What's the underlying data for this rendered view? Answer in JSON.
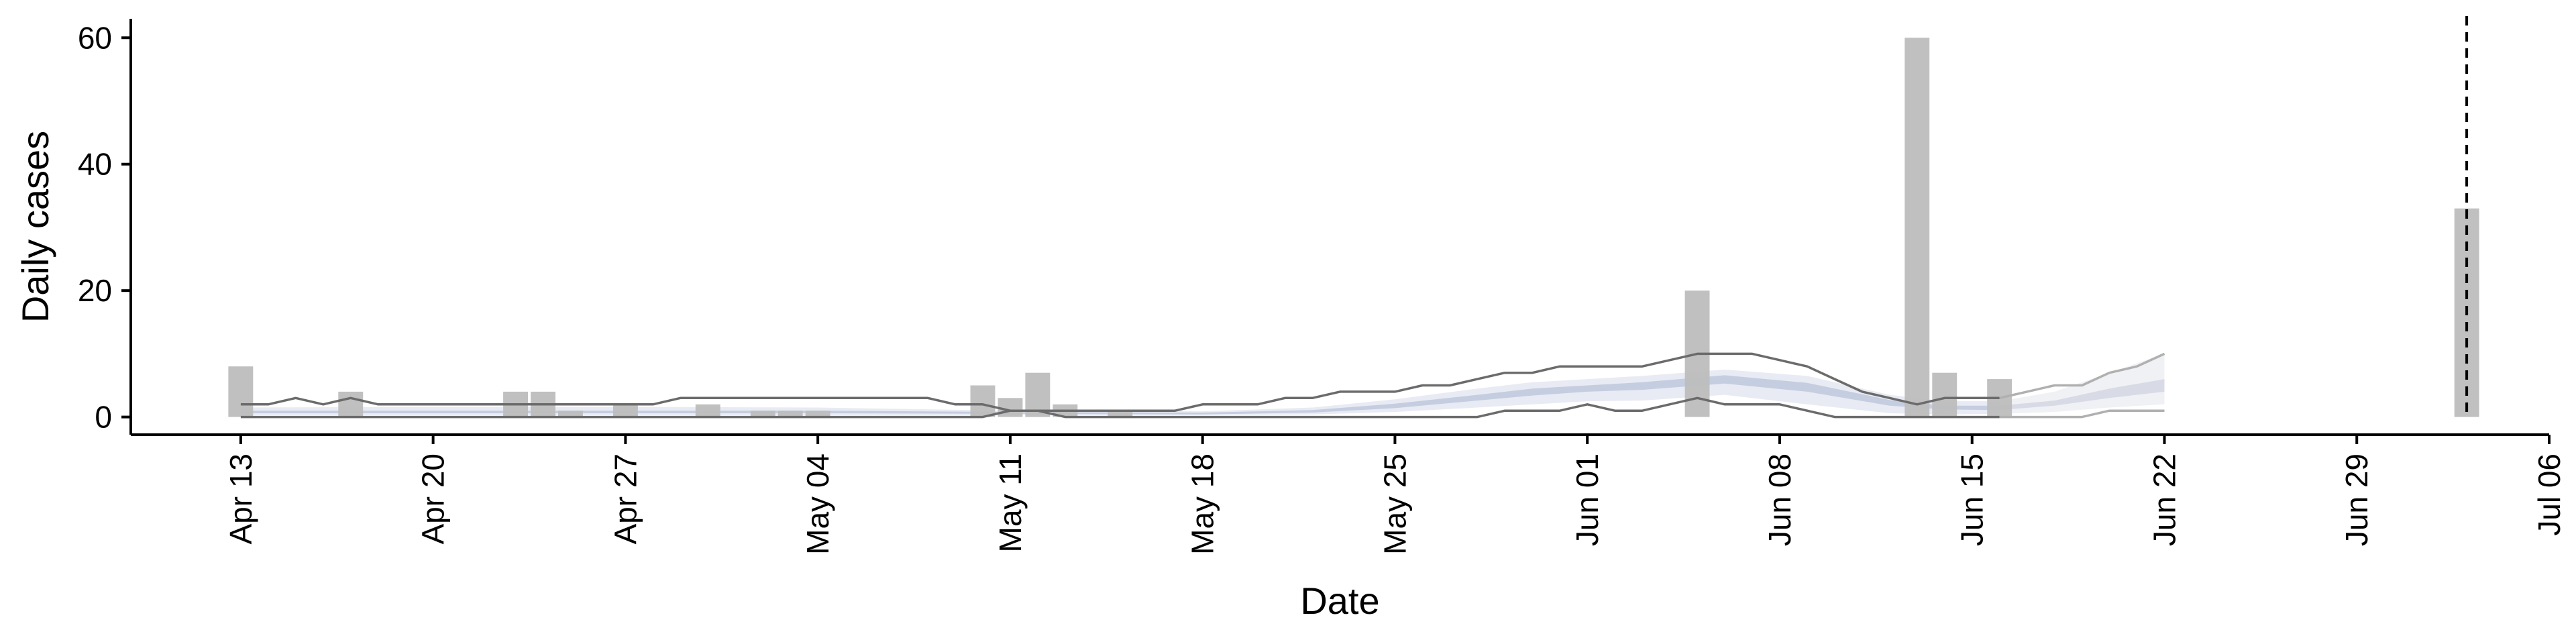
{
  "chart_data": {
    "type": "bar",
    "xlabel": "Date",
    "ylabel": "Daily cases",
    "x_axis": {
      "type": "date",
      "range": [
        "2020-04-09",
        "2020-07-06"
      ],
      "ticks": [
        {
          "date": "2020-04-13",
          "label": "Apr 13"
        },
        {
          "date": "2020-04-20",
          "label": "Apr 20"
        },
        {
          "date": "2020-04-27",
          "label": "Apr 27"
        },
        {
          "date": "2020-05-04",
          "label": "May 04"
        },
        {
          "date": "2020-05-11",
          "label": "May 11"
        },
        {
          "date": "2020-05-18",
          "label": "May 18"
        },
        {
          "date": "2020-05-25",
          "label": "May 25"
        },
        {
          "date": "2020-06-01",
          "label": "Jun 01"
        },
        {
          "date": "2020-06-08",
          "label": "Jun 08"
        },
        {
          "date": "2020-06-15",
          "label": "Jun 15"
        },
        {
          "date": "2020-06-22",
          "label": "Jun 22"
        },
        {
          "date": "2020-06-29",
          "label": "Jun 29"
        },
        {
          "date": "2020-07-06",
          "label": "Jul 06"
        }
      ]
    },
    "y_axis": {
      "range": [
        -2.8,
        63
      ],
      "ticks": [
        0,
        20,
        40,
        60
      ]
    },
    "grid": false,
    "colors": {
      "bars": "#bdbdbd",
      "band_outer": "#e8ebf3",
      "band_inner": "#c5cde0",
      "band_future_outer": "#f0f1f5",
      "band_future_inner": "#d8dbe6",
      "bound_lines": "#6b6b6b",
      "bound_lines_future": "#b0b0b0",
      "vline": "#000000"
    },
    "observed_cases": [
      {
        "date": "2020-04-13",
        "value": 8
      },
      {
        "date": "2020-04-17",
        "value": 4
      },
      {
        "date": "2020-04-23",
        "value": 4
      },
      {
        "date": "2020-04-24",
        "value": 4
      },
      {
        "date": "2020-04-25",
        "value": 1
      },
      {
        "date": "2020-04-27",
        "value": 2
      },
      {
        "date": "2020-04-30",
        "value": 2
      },
      {
        "date": "2020-05-02",
        "value": 1
      },
      {
        "date": "2020-05-03",
        "value": 1
      },
      {
        "date": "2020-05-04",
        "value": 1
      },
      {
        "date": "2020-05-10",
        "value": 5
      },
      {
        "date": "2020-05-11",
        "value": 3
      },
      {
        "date": "2020-05-12",
        "value": 7
      },
      {
        "date": "2020-05-13",
        "value": 2
      },
      {
        "date": "2020-05-15",
        "value": 1
      },
      {
        "date": "2020-06-05",
        "value": 20
      },
      {
        "date": "2020-06-13",
        "value": 60
      },
      {
        "date": "2020-06-14",
        "value": 7
      },
      {
        "date": "2020-06-16",
        "value": 6
      },
      {
        "date": "2020-07-03",
        "value": 33
      }
    ],
    "estimate_band": {
      "dates": [
        "2020-04-13",
        "2020-04-20",
        "2020-04-27",
        "2020-05-04",
        "2020-05-11",
        "2020-05-18",
        "2020-05-22",
        "2020-05-25",
        "2020-05-28",
        "2020-05-30",
        "2020-06-01",
        "2020-06-03",
        "2020-06-06",
        "2020-06-09",
        "2020-06-12",
        "2020-06-14",
        "2020-06-16"
      ],
      "outer_low": [
        0.3,
        0.3,
        0.3,
        0.3,
        0.3,
        0.3,
        0.4,
        0.8,
        1.5,
        2.0,
        2.5,
        2.6,
        3.5,
        2.0,
        0.6,
        0.4,
        0.5
      ],
      "outer_high": [
        1.5,
        1.6,
        1.6,
        1.5,
        1.0,
        0.9,
        1.5,
        2.8,
        4.5,
        5.5,
        6.0,
        6.5,
        7.5,
        6.5,
        3.5,
        2.5,
        2.5
      ],
      "inner_low": [
        0.6,
        0.6,
        0.6,
        0.6,
        0.5,
        0.4,
        0.7,
        1.4,
        2.6,
        3.4,
        4.0,
        4.3,
        5.3,
        4.0,
        1.8,
        1.2,
        1.1
      ],
      "inner_high": [
        1.0,
        1.0,
        1.0,
        1.0,
        0.8,
        0.7,
        1.1,
        2.1,
        3.5,
        4.5,
        5.0,
        5.5,
        6.6,
        5.4,
        2.7,
        1.8,
        1.8
      ]
    },
    "forecast_band": {
      "dates": [
        "2020-06-16",
        "2020-06-18",
        "2020-06-20",
        "2020-06-22"
      ],
      "outer_low": [
        0.5,
        0.8,
        1.5,
        2.0
      ],
      "outer_high": [
        2.5,
        4.0,
        7.0,
        10.0
      ],
      "inner_low": [
        1.1,
        1.8,
        3.0,
        4.0
      ],
      "inner_high": [
        1.8,
        2.6,
        4.5,
        6.0
      ]
    },
    "upper_bound": [
      {
        "date": "2020-04-13",
        "value": 2
      },
      {
        "date": "2020-04-14",
        "value": 2
      },
      {
        "date": "2020-04-15",
        "value": 3
      },
      {
        "date": "2020-04-16",
        "value": 2
      },
      {
        "date": "2020-04-17",
        "value": 3
      },
      {
        "date": "2020-04-18",
        "value": 2
      },
      {
        "date": "2020-04-28",
        "value": 2
      },
      {
        "date": "2020-04-29",
        "value": 3
      },
      {
        "date": "2020-05-08",
        "value": 3
      },
      {
        "date": "2020-05-09",
        "value": 2
      },
      {
        "date": "2020-05-10",
        "value": 2
      },
      {
        "date": "2020-05-11",
        "value": 1
      },
      {
        "date": "2020-05-17",
        "value": 1
      },
      {
        "date": "2020-05-18",
        "value": 2
      },
      {
        "date": "2020-05-20",
        "value": 2
      },
      {
        "date": "2020-05-21",
        "value": 3
      },
      {
        "date": "2020-05-22",
        "value": 3
      },
      {
        "date": "2020-05-23",
        "value": 4
      },
      {
        "date": "2020-05-25",
        "value": 4
      },
      {
        "date": "2020-05-26",
        "value": 5
      },
      {
        "date": "2020-05-27",
        "value": 5
      },
      {
        "date": "2020-05-28",
        "value": 6
      },
      {
        "date": "2020-05-29",
        "value": 7
      },
      {
        "date": "2020-05-30",
        "value": 7
      },
      {
        "date": "2020-05-31",
        "value": 8
      },
      {
        "date": "2020-06-03",
        "value": 8
      },
      {
        "date": "2020-06-04",
        "value": 9
      },
      {
        "date": "2020-06-05",
        "value": 10
      },
      {
        "date": "2020-06-07",
        "value": 10
      },
      {
        "date": "2020-06-08",
        "value": 9
      },
      {
        "date": "2020-06-09",
        "value": 8
      },
      {
        "date": "2020-06-10",
        "value": 6
      },
      {
        "date": "2020-06-11",
        "value": 4
      },
      {
        "date": "2020-06-12",
        "value": 3
      },
      {
        "date": "2020-06-13",
        "value": 2
      },
      {
        "date": "2020-06-14",
        "value": 3
      },
      {
        "date": "2020-06-16",
        "value": 3
      }
    ],
    "upper_bound_forecast": [
      {
        "date": "2020-06-16",
        "value": 3
      },
      {
        "date": "2020-06-17",
        "value": 4
      },
      {
        "date": "2020-06-18",
        "value": 5
      },
      {
        "date": "2020-06-19",
        "value": 5
      },
      {
        "date": "2020-06-20",
        "value": 7
      },
      {
        "date": "2020-06-21",
        "value": 8
      },
      {
        "date": "2020-06-22",
        "value": 10
      }
    ],
    "lower_bound": [
      {
        "date": "2020-04-13",
        "value": 0
      },
      {
        "date": "2020-05-10",
        "value": 0
      },
      {
        "date": "2020-05-11",
        "value": 1
      },
      {
        "date": "2020-05-12",
        "value": 1
      },
      {
        "date": "2020-05-13",
        "value": 0
      },
      {
        "date": "2020-05-28",
        "value": 0
      },
      {
        "date": "2020-05-29",
        "value": 1
      },
      {
        "date": "2020-05-31",
        "value": 1
      },
      {
        "date": "2020-06-01",
        "value": 2
      },
      {
        "date": "2020-06-02",
        "value": 1
      },
      {
        "date": "2020-06-03",
        "value": 1
      },
      {
        "date": "2020-06-05",
        "value": 3
      },
      {
        "date": "2020-06-06",
        "value": 2
      },
      {
        "date": "2020-06-08",
        "value": 2
      },
      {
        "date": "2020-06-09",
        "value": 1
      },
      {
        "date": "2020-06-10",
        "value": 0
      },
      {
        "date": "2020-06-16",
        "value": 0
      }
    ],
    "lower_bound_forecast": [
      {
        "date": "2020-06-16",
        "value": 0
      },
      {
        "date": "2020-06-19",
        "value": 0
      },
      {
        "date": "2020-06-20",
        "value": 1
      },
      {
        "date": "2020-06-22",
        "value": 1
      }
    ],
    "vline": {
      "date": "2020-07-03",
      "style": "dashed"
    }
  }
}
